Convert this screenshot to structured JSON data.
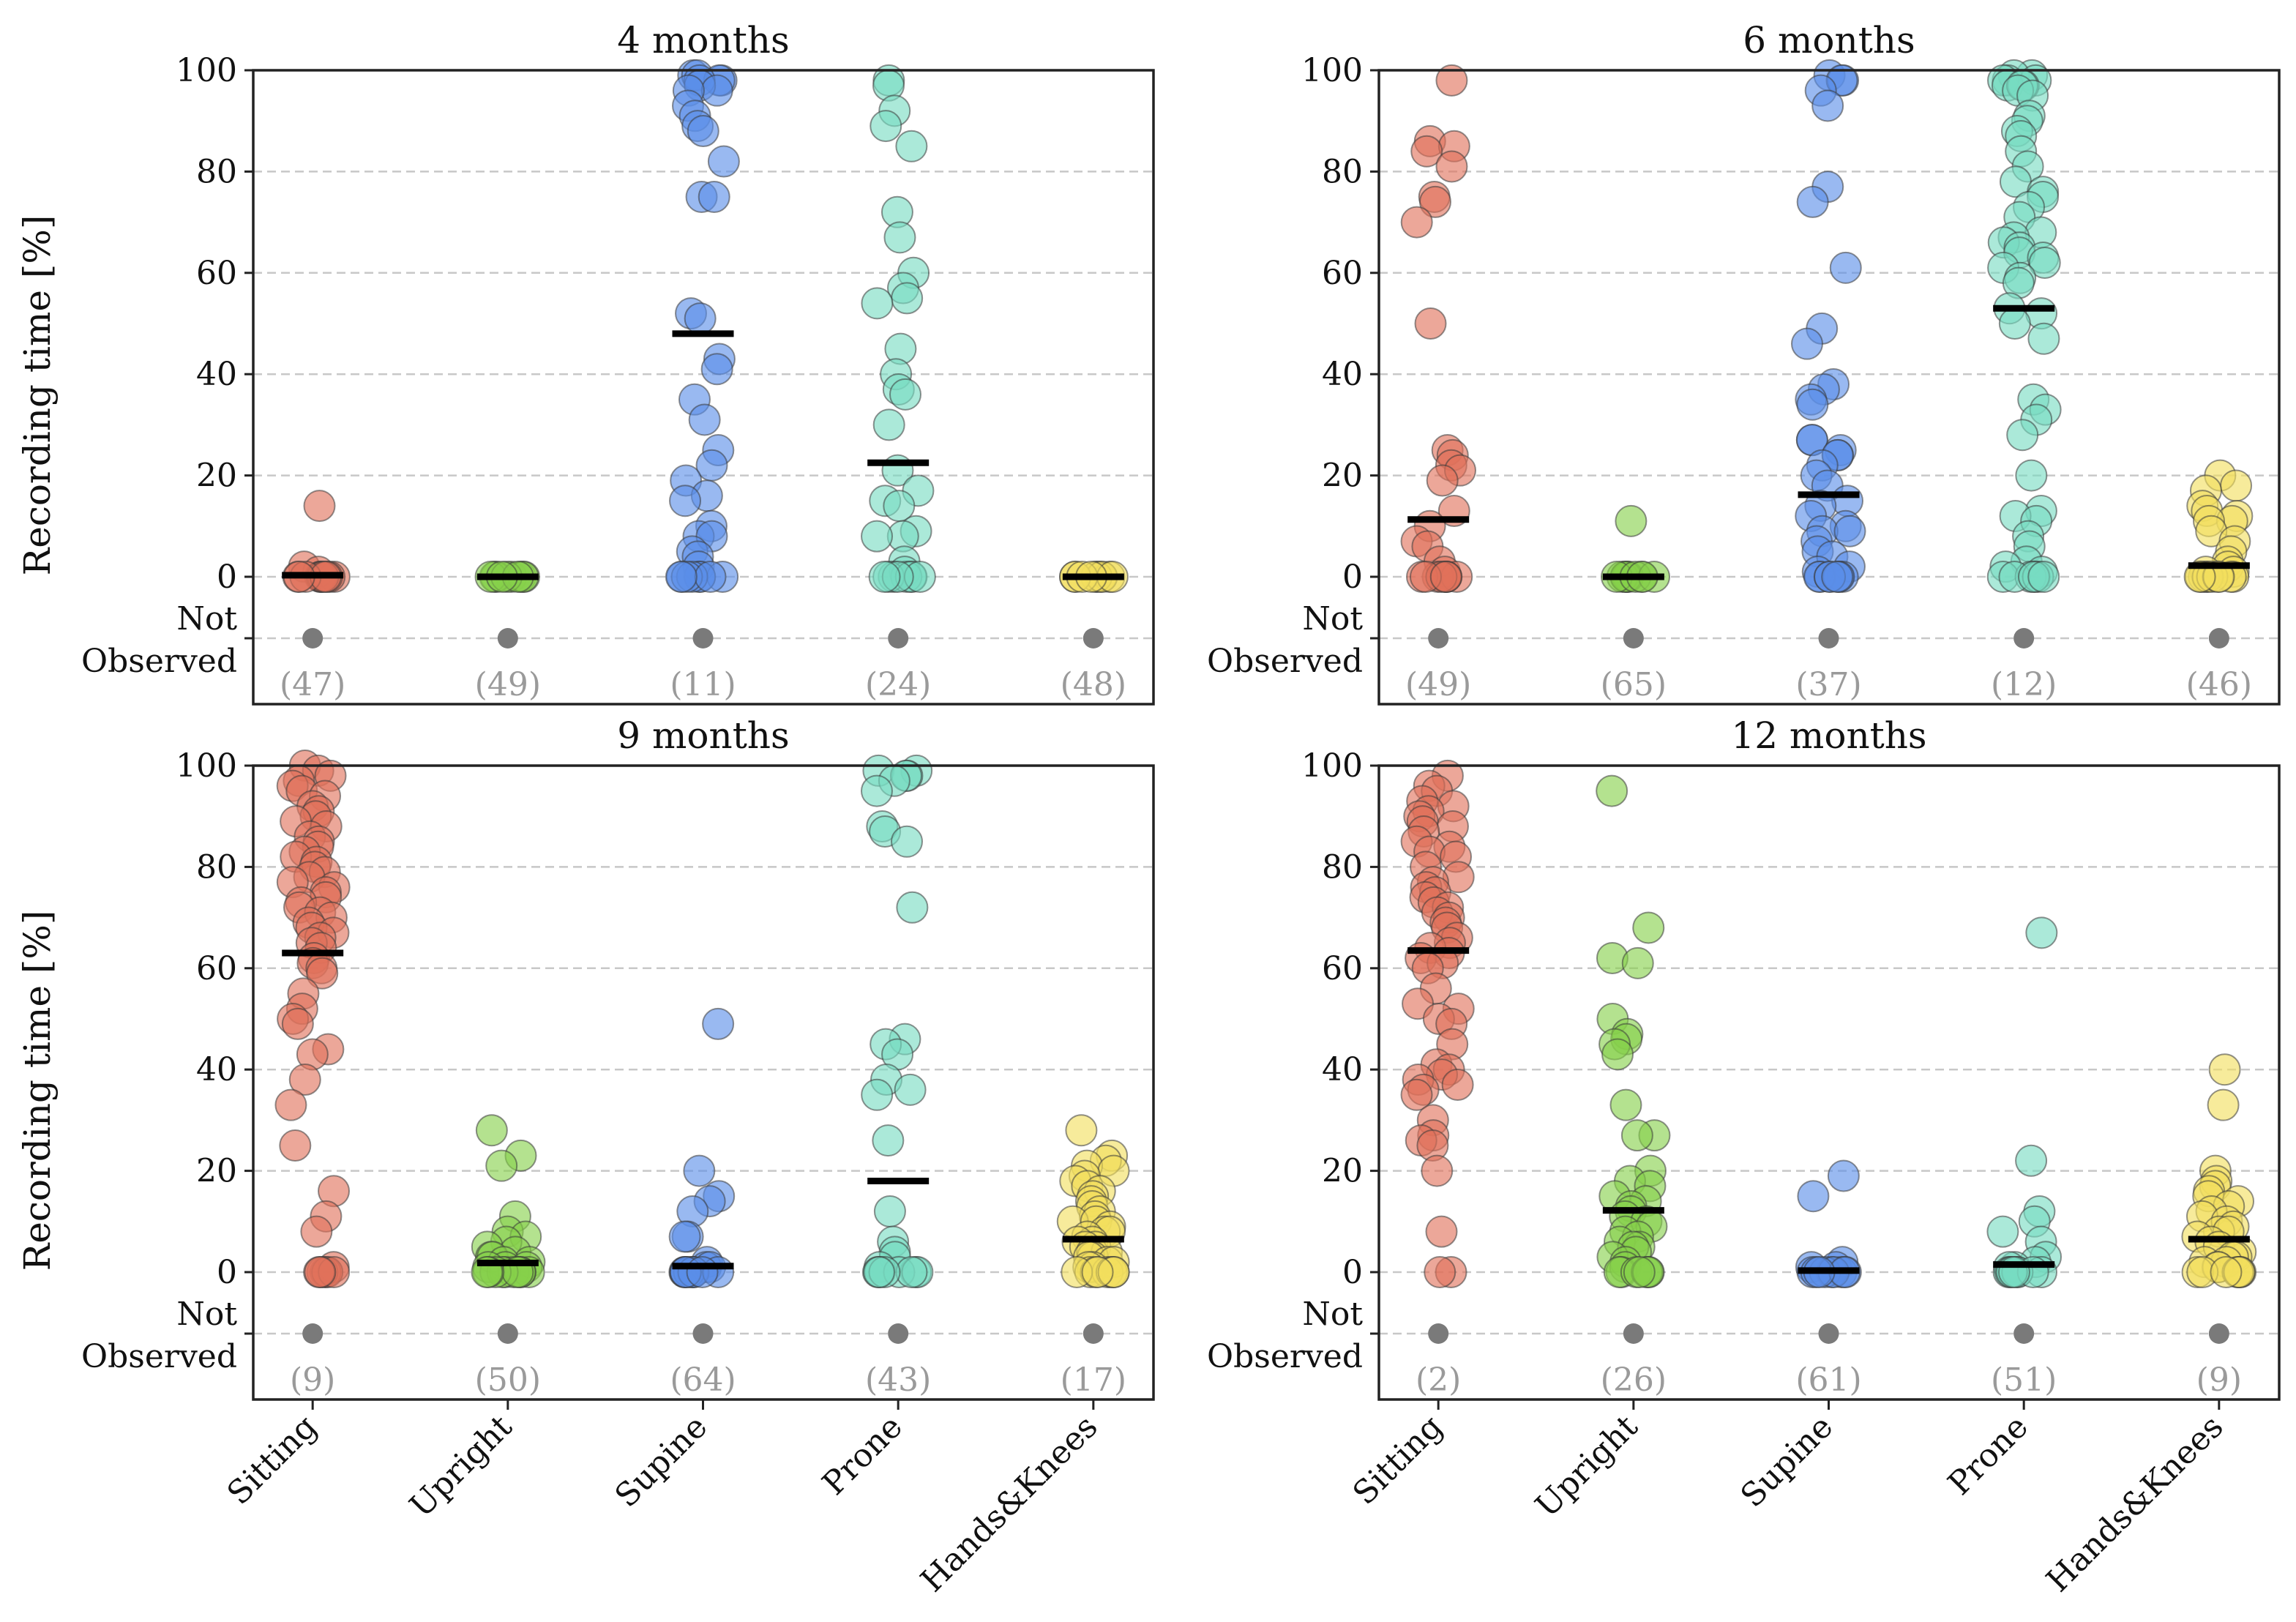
{
  "chart_data": {
    "type": "scatter",
    "subtype": "strip plot with mean bars",
    "ylabel": "Recording time [%]",
    "ylim": [
      0,
      100
    ],
    "yticks": [
      0,
      20,
      40,
      60,
      80,
      100
    ],
    "not_observed_label": [
      "Not",
      "Observed"
    ],
    "grid": true,
    "categories": [
      "Sitting",
      "Upright",
      "Supine",
      "Prone",
      "Hands&Knees"
    ],
    "colors": {
      "Sitting": "#e0715a",
      "Upright": "#86d04a",
      "Supine": "#5a8ee8",
      "Prone": "#78dcc2",
      "Hands&Knees": "#f2de5e",
      "not_observed": "#7a7a7a",
      "count_text": "#9a9a9a"
    },
    "panels": [
      {
        "title": "4 months",
        "series": [
          {
            "name": "Sitting",
            "mean": 0.3,
            "not_observed_count": "(47)",
            "values": [
              14,
              2,
              1,
              0,
              0,
              0,
              0,
              0,
              0,
              0,
              0,
              0,
              0,
              0
            ]
          },
          {
            "name": "Upright",
            "mean": 0,
            "not_observed_count": "(49)",
            "values": [
              0,
              0,
              0,
              0,
              0,
              0,
              0,
              0,
              0,
              0
            ]
          },
          {
            "name": "Supine",
            "mean": 48,
            "not_observed_count": "(11)",
            "values": [
              99,
              99,
              98,
              98,
              98,
              97,
              96,
              96,
              93,
              91,
              89,
              88,
              82,
              75,
              75,
              52,
              51,
              43,
              41,
              35,
              31,
              25,
              22,
              19,
              16,
              15,
              10,
              8,
              8,
              5,
              4,
              2,
              0,
              0,
              0,
              0,
              0,
              0,
              0,
              0
            ]
          },
          {
            "name": "Prone",
            "mean": 22.5,
            "not_observed_count": "(24)",
            "values": [
              98,
              97,
              92,
              89,
              85,
              72,
              67,
              60,
              57,
              55,
              54,
              45,
              40,
              37,
              36,
              30,
              21,
              17,
              15,
              14,
              9,
              8,
              8,
              3,
              1,
              0,
              0,
              0,
              0,
              0,
              0,
              0,
              0
            ]
          },
          {
            "name": "Hands&Knees",
            "mean": 0,
            "not_observed_count": "(48)",
            "values": [
              0,
              0,
              0,
              0,
              0,
              0,
              0,
              0,
              0,
              0
            ]
          }
        ]
      },
      {
        "title": "6 months",
        "series": [
          {
            "name": "Sitting",
            "mean": 11.3,
            "not_observed_count": "(49)",
            "values": [
              98,
              86,
              85,
              84,
              81,
              75,
              74,
              70,
              50,
              25,
              24,
              22,
              21,
              19,
              13,
              10,
              7,
              6,
              3,
              1,
              0,
              0,
              0,
              0,
              0,
              0,
              0,
              0,
              0,
              0
            ]
          },
          {
            "name": "Upright",
            "mean": 0,
            "not_observed_count": "(65)",
            "values": [
              11,
              0,
              0,
              0,
              0,
              0,
              0,
              0,
              0,
              0,
              0
            ]
          },
          {
            "name": "Supine",
            "mean": 16.2,
            "not_observed_count": "(37)",
            "values": [
              99,
              98,
              98,
              96,
              93,
              77,
              74,
              61,
              49,
              46,
              38,
              37,
              35,
              34,
              27,
              27,
              25,
              24,
              24,
              22,
              20,
              18,
              15,
              14,
              12,
              10,
              9,
              9,
              7,
              5,
              4,
              2,
              1,
              0,
              0,
              0,
              0,
              0,
              0,
              0,
              0
            ]
          },
          {
            "name": "Prone",
            "mean": 53,
            "not_observed_count": "(12)",
            "values": [
              99,
              99,
              98,
              98,
              98,
              97,
              97,
              97,
              96,
              95,
              91,
              90,
              88,
              87,
              84,
              81,
              78,
              76,
              75,
              73,
              71,
              68,
              67,
              66,
              65,
              64,
              63,
              62,
              61,
              59,
              58,
              53,
              52,
              50,
              47,
              35,
              33,
              31,
              28,
              20,
              13,
              12,
              11,
              8,
              6,
              3,
              2,
              1,
              0,
              0,
              0,
              0,
              0,
              0,
              0
            ]
          },
          {
            "name": "Hands&Knees",
            "mean": 2.2,
            "not_observed_count": "(46)",
            "values": [
              20,
              18,
              17,
              14,
              13,
              12,
              11,
              11,
              9,
              7,
              5,
              3,
              2,
              1,
              1,
              0,
              0,
              0,
              0,
              0,
              0,
              0,
              0,
              0,
              0
            ]
          }
        ]
      },
      {
        "title": "9 months",
        "series": [
          {
            "name": "Sitting",
            "mean": 63,
            "not_observed_count": "(9)",
            "values": [
              100,
              99,
              98,
              97,
              96,
              95,
              94,
              92,
              91,
              90,
              89,
              88,
              86,
              85,
              84,
              83,
              82,
              81,
              80,
              79,
              78,
              77,
              76,
              75,
              74,
              73,
              72,
              71,
              70,
              69,
              68,
              67,
              66,
              65,
              64,
              62,
              61,
              60,
              59,
              55,
              52,
              50,
              49,
              44,
              43,
              38,
              33,
              25,
              16,
              11,
              8,
              1,
              0,
              0,
              0,
              0,
              0,
              0
            ]
          },
          {
            "name": "Upright",
            "mean": 1.8,
            "not_observed_count": "(50)",
            "values": [
              28,
              23,
              21,
              11,
              8,
              7,
              6,
              5,
              4,
              3,
              3,
              2,
              2,
              1,
              1,
              1,
              0,
              0,
              0,
              0,
              0,
              0,
              0,
              0,
              0,
              0
            ]
          },
          {
            "name": "Supine",
            "mean": 1.2,
            "not_observed_count": "(64)",
            "values": [
              49,
              20,
              15,
              14,
              12,
              7,
              7,
              2,
              1,
              1,
              0,
              0,
              0,
              0,
              0,
              0,
              0,
              0,
              0,
              0
            ]
          },
          {
            "name": "Prone",
            "mean": 18,
            "not_observed_count": "(43)",
            "values": [
              99,
              99,
              98,
              98,
              97,
              95,
              88,
              87,
              85,
              72,
              46,
              45,
              43,
              38,
              36,
              35,
              26,
              12,
              6,
              4,
              3,
              1,
              0,
              0,
              0,
              0,
              0,
              0,
              0,
              0
            ]
          },
          {
            "name": "Hands&Knees",
            "mean": 6.5,
            "not_observed_count": "(17)",
            "values": [
              28,
              23,
              22,
              21,
              20,
              19,
              18,
              17,
              16,
              15,
              14,
              13,
              12,
              11,
              10,
              10,
              9,
              8,
              8,
              7,
              6,
              6,
              5,
              5,
              4,
              4,
              3,
              3,
              2,
              2,
              1,
              1,
              0,
              0,
              0,
              0,
              0,
              0,
              0,
              0
            ]
          }
        ]
      },
      {
        "title": "12 months",
        "series": [
          {
            "name": "Sitting",
            "mean": 63.5,
            "not_observed_count": "(2)",
            "values": [
              98,
              96,
              95,
              93,
              92,
              91,
              90,
              89,
              88,
              87,
              85,
              84,
              83,
              82,
              80,
              78,
              77,
              76,
              75,
              74,
              73,
              72,
              71,
              70,
              69,
              68,
              66,
              65,
              64,
              63,
              62,
              61,
              60,
              56,
              53,
              52,
              50,
              49,
              45,
              41,
              40,
              39,
              38,
              37,
              36,
              35,
              30,
              27,
              26,
              25,
              20,
              8,
              0,
              0
            ]
          },
          {
            "name": "Upright",
            "mean": 12.2,
            "not_observed_count": "(26)",
            "values": [
              95,
              68,
              62,
              61,
              50,
              47,
              46,
              45,
              43,
              33,
              27,
              27,
              20,
              18,
              17,
              15,
              14,
              13,
              12,
              11,
              10,
              9,
              8,
              7,
              6,
              5,
              5,
              4,
              3,
              2,
              1,
              0,
              0,
              0,
              0,
              0,
              0,
              0
            ]
          },
          {
            "name": "Supine",
            "mean": 0.3,
            "not_observed_count": "(61)",
            "values": [
              19,
              15,
              2,
              1,
              1,
              0,
              0,
              0,
              0,
              0,
              0,
              0,
              0,
              0
            ]
          },
          {
            "name": "Prone",
            "mean": 1.5,
            "not_observed_count": "(51)",
            "values": [
              67,
              22,
              12,
              10,
              8,
              6,
              3,
              2,
              1,
              1,
              0,
              0,
              0,
              0,
              0,
              0,
              0,
              0
            ]
          },
          {
            "name": "Hands&Knees",
            "mean": 6.5,
            "not_observed_count": "(9)",
            "values": [
              40,
              33,
              20,
              18,
              17,
              16,
              15,
              14,
              13,
              12,
              11,
              10,
              9,
              8,
              8,
              7,
              6,
              5,
              4,
              3,
              3,
              2,
              2,
              1,
              1,
              0,
              0,
              0,
              0,
              0,
              0,
              0
            ]
          }
        ]
      }
    ]
  }
}
